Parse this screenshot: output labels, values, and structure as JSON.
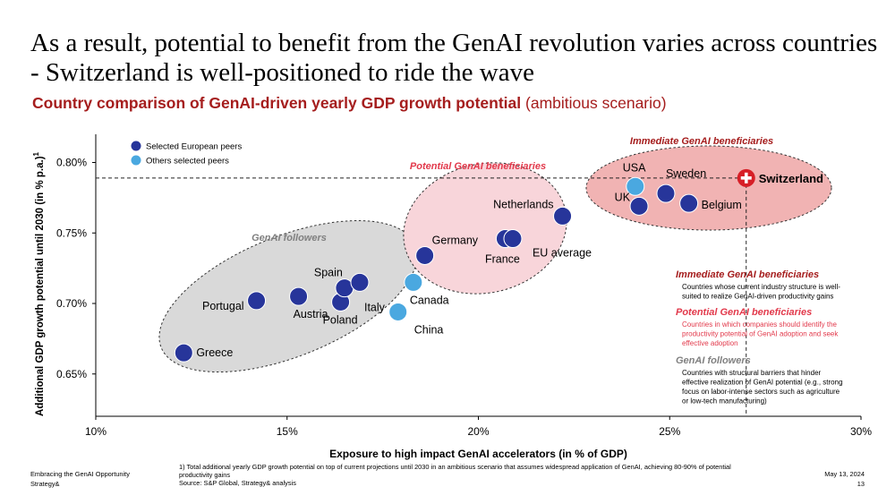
{
  "header": {
    "title": "As a result, potential to benefit from the GenAI revolution varies across countries - Switzerland is well-positioned to ride the wave",
    "subtitle_bold": "Country comparison of GenAI-driven yearly GDP growth potential",
    "subtitle_normal": "(ambitious scenario)"
  },
  "chart_data": {
    "type": "scatter",
    "xlabel": "Exposure to high impact GenAI accelerators (in % of GDP)",
    "ylabel": "Additional GDP growth potential until 2030 (in % p.a.)",
    "ylabel_sup": "1",
    "xlim": [
      10,
      30
    ],
    "ylim": [
      0.62,
      0.82
    ],
    "x_ticks": [
      10,
      15,
      20,
      25,
      30
    ],
    "x_tick_labels": [
      "10%",
      "15%",
      "20%",
      "25%",
      "30%"
    ],
    "y_ticks": [
      0.65,
      0.7,
      0.75,
      0.8
    ],
    "y_tick_labels": [
      "0.65%",
      "0.70%",
      "0.75%",
      "0.80%"
    ],
    "legend": {
      "placement": "top-left",
      "items": [
        {
          "label": "Selected European peers",
          "color": "#27359a"
        },
        {
          "label": "Others selected peers",
          "color": "#4aa8e0"
        }
      ]
    },
    "series": [
      {
        "name": "Selected European peers",
        "color": "#27359a",
        "points": [
          {
            "label": "Greece",
            "x": 12.3,
            "y": 0.665
          },
          {
            "label": "Portugal",
            "x": 14.2,
            "y": 0.702
          },
          {
            "label": "Austria",
            "x": 15.3,
            "y": 0.705
          },
          {
            "label": "Poland",
            "x": 16.4,
            "y": 0.701
          },
          {
            "label": "Spain",
            "x": 16.5,
            "y": 0.711
          },
          {
            "label": "Italy",
            "x": 16.9,
            "y": 0.715
          },
          {
            "label": "Germany",
            "x": 18.6,
            "y": 0.734
          },
          {
            "label": "France",
            "x": 20.7,
            "y": 0.746
          },
          {
            "label": "EU average",
            "x": 20.9,
            "y": 0.746
          },
          {
            "label": "Netherlands",
            "x": 22.2,
            "y": 0.762
          },
          {
            "label": "UK",
            "x": 24.2,
            "y": 0.769
          },
          {
            "label": "Sweden",
            "x": 24.9,
            "y": 0.778
          },
          {
            "label": "Belgium",
            "x": 25.5,
            "y": 0.771
          }
        ]
      },
      {
        "name": "Others selected peers",
        "color": "#4aa8e0",
        "points": [
          {
            "label": "China",
            "x": 17.9,
            "y": 0.694
          },
          {
            "label": "Canada",
            "x": 18.3,
            "y": 0.715
          },
          {
            "label": "USA",
            "x": 24.1,
            "y": 0.783
          }
        ]
      }
    ],
    "highlight": {
      "label": "Switzerland",
      "x": 27.0,
      "y": 0.789,
      "color": "#d71f27"
    },
    "reference_lines": {
      "x": 27.0,
      "y": 0.789
    },
    "groups": [
      {
        "label": "GenAI followers",
        "fill": "#d9d9d9",
        "color": "#808080"
      },
      {
        "label": "Potential GenAI beneficiaries",
        "fill": "#f8d5da",
        "color": "#e2394b"
      },
      {
        "label": "Immediate GenAI beneficiaries",
        "fill": "#f1b3b3",
        "color": "#a51d1d"
      }
    ],
    "annotations": [
      {
        "title": "Immediate GenAI beneficiaries",
        "color": "#a51d1d",
        "lines": [
          "Countries whose current industry structure is well-",
          "suited to realize GenAI-driven productivity gains"
        ]
      },
      {
        "title": "Potential GenAI beneficiaries",
        "color": "#e2394b",
        "lines": [
          "Countries in which companies should identify the",
          "productivity potential of GenAI adoption and seek",
          "effective adoption"
        ]
      },
      {
        "title": "GenAI followers",
        "color": "#808080",
        "lines": [
          "Countries with structural barriers that hinder",
          "effective realization of GenAI potential (e.g., strong",
          "focus on labor-intense sectors such as agriculture",
          "or low-tech manufacturing)"
        ]
      }
    ]
  },
  "footer": {
    "left_line1": "Embracing the GenAI Opportunity",
    "left_line2": "Strategy&",
    "note_line1": "1) Total additional yearly GDP growth potential on top of current projections until 2030 in an ambitious scenario that assumes widespread application of GenAI, achieving 80-90% of potential",
    "note_line2": "productivity gains",
    "note_line3": "Source: S&P Global, Strategy& analysis",
    "date": "May 13, 2024",
    "page": "13"
  }
}
